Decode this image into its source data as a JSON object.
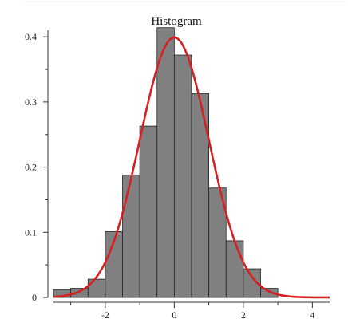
{
  "chart_data": {
    "type": "bar",
    "title": "Histogram",
    "xlabel": "",
    "ylabel": "",
    "xlim": [
      -3.5,
      4.5
    ],
    "ylim": [
      0,
      0.41
    ],
    "bin_edges": [
      -3.5,
      -3.0,
      -2.5,
      -2.0,
      -1.5,
      -1.0,
      -0.5,
      0.0,
      0.5,
      1.0,
      1.5,
      2.0,
      2.5,
      3.0
    ],
    "values": [
      0.012,
      0.014,
      0.028,
      0.101,
      0.188,
      0.263,
      0.414,
      0.372,
      0.313,
      0.168,
      0.087,
      0.044,
      0.014
    ],
    "x_ticks": [
      -2,
      0,
      2,
      4
    ],
    "x_tick_labels": [
      "-2",
      "0",
      "2",
      "4"
    ],
    "y_ticks": [
      0,
      0.1,
      0.2,
      0.3,
      0.4
    ],
    "y_tick_labels": [
      "0",
      "0.1",
      "0.2",
      "0.3",
      "0.4"
    ],
    "curve": {
      "type": "normal-density",
      "mean": 0,
      "sd": 1,
      "color": "#d62020"
    },
    "bar_color": "#808080",
    "bar_edge_color": "#222222",
    "grid": false,
    "legend": "none"
  }
}
